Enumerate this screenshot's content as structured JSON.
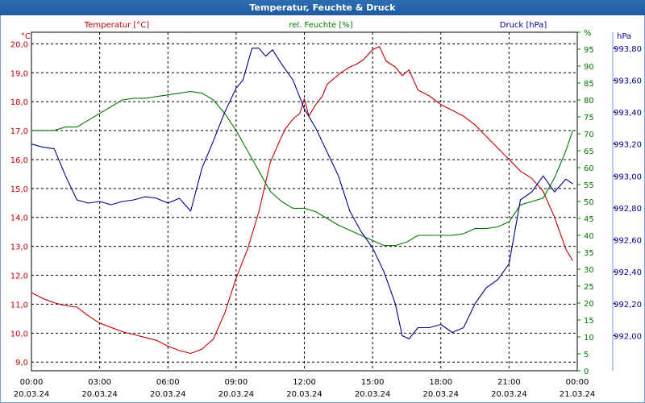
{
  "window": {
    "title": "Temperatur, Feuchte & Druck"
  },
  "colors": {
    "temperature": "#c00000",
    "humidity": "#007a00",
    "pressure": "#00008b",
    "grid": "#000000",
    "title_bar": "#2060a8"
  },
  "chart_data": {
    "type": "line",
    "title": "Temperatur, Feuchte & Druck",
    "x_ticks": [
      {
        "time": "00:00",
        "date": "20.03.24"
      },
      {
        "time": "03:00",
        "date": "20.03.24"
      },
      {
        "time": "06:00",
        "date": "20.03.24"
      },
      {
        "time": "09:00",
        "date": "20.03.24"
      },
      {
        "time": "12:00",
        "date": "20.03.24"
      },
      {
        "time": "15:00",
        "date": "20.03.24"
      },
      {
        "time": "18:00",
        "date": "20.03.24"
      },
      {
        "time": "21:00",
        "date": "20.03.24"
      },
      {
        "time": "00:00",
        "date": "21.03.24"
      }
    ],
    "xlim": [
      0,
      24
    ],
    "axes": {
      "temperature": {
        "label": "Temperatur [°C]",
        "unit": "°C",
        "ylim": [
          8.7,
          20.4
        ],
        "ticks": [
          "9,0",
          "10,0",
          "11,0",
          "12,0",
          "13,0",
          "14,0",
          "15,0",
          "16,0",
          "17,0",
          "18,0",
          "19,0",
          "20,0"
        ],
        "tick_values": [
          9,
          10,
          11,
          12,
          13,
          14,
          15,
          16,
          17,
          18,
          19,
          20
        ]
      },
      "humidity": {
        "label": "rel. Feuchte [%]",
        "unit": "%",
        "ylim": [
          0,
          100
        ],
        "ticks": [
          "0",
          "5",
          "10",
          "15",
          "20",
          "25",
          "30",
          "35",
          "40",
          "45",
          "50",
          "55",
          "60",
          "65",
          "70",
          "75",
          "80",
          "85",
          "90",
          "95",
          "%"
        ],
        "tick_values": [
          0,
          5,
          10,
          15,
          20,
          25,
          30,
          35,
          40,
          45,
          50,
          55,
          60,
          65,
          70,
          75,
          80,
          85,
          90,
          95,
          100
        ]
      },
      "pressure": {
        "label": "Druck [hPa]",
        "unit": "hPa",
        "ylim": [
          991.78,
          993.9
        ],
        "ticks": [
          "992,00",
          "992,20",
          "992,40",
          "992,60",
          "992,80",
          "993,00",
          "993,20",
          "993,40",
          "993,60",
          "993,80"
        ],
        "tick_values": [
          992.0,
          992.2,
          992.4,
          992.6,
          992.8,
          993.0,
          993.2,
          993.4,
          993.6,
          993.8
        ]
      }
    },
    "series": [
      {
        "name": "Temperatur [°C]",
        "axis": "temperature",
        "color": "#c00000",
        "x": [
          0,
          0.5,
          1,
          1.5,
          2,
          2.5,
          3,
          3.5,
          4,
          4.5,
          5,
          5.5,
          6,
          6.5,
          7,
          7.5,
          8,
          8.5,
          9,
          9.5,
          10,
          10.5,
          11,
          11.2,
          11.5,
          11.8,
          12,
          12.2,
          12.5,
          12.8,
          13,
          13.3,
          13.6,
          14,
          14.3,
          14.6,
          15,
          15.3,
          15.6,
          16,
          16.3,
          16.6,
          17,
          17.5,
          18,
          18.5,
          19,
          19.5,
          20,
          20.5,
          21,
          21.5,
          22,
          22.5,
          23,
          23.5,
          23.8
        ],
        "values": [
          11.4,
          11.2,
          11.05,
          10.95,
          10.9,
          10.6,
          10.35,
          10.2,
          10.05,
          9.95,
          9.85,
          9.75,
          9.55,
          9.4,
          9.3,
          9.45,
          9.8,
          10.7,
          11.9,
          12.9,
          14.2,
          15.9,
          16.8,
          17.1,
          17.4,
          17.6,
          18.1,
          17.5,
          17.9,
          18.2,
          18.6,
          18.8,
          19.0,
          19.2,
          19.3,
          19.45,
          19.8,
          19.9,
          19.4,
          19.2,
          18.9,
          19.1,
          18.4,
          18.2,
          17.9,
          17.7,
          17.5,
          17.2,
          16.8,
          16.4,
          16.0,
          15.6,
          15.35,
          14.9,
          14.0,
          12.9,
          12.5
        ]
      },
      {
        "name": "rel. Feuchte [%]",
        "axis": "humidity",
        "color": "#007a00",
        "x": [
          0,
          0.5,
          1,
          1.5,
          2,
          2.5,
          3,
          3.5,
          4,
          4.5,
          5,
          5.5,
          6,
          6.5,
          7,
          7.5,
          8,
          8.5,
          9,
          9.5,
          10,
          10.5,
          11,
          11.5,
          12,
          12.5,
          13,
          13.5,
          14,
          14.5,
          15,
          15.5,
          16,
          16.5,
          17,
          17.5,
          18,
          18.5,
          19,
          19.5,
          20,
          20.5,
          21,
          21.5,
          22,
          22.5,
          23,
          23.5,
          23.8
        ],
        "values": [
          71,
          71,
          71,
          72,
          72,
          74,
          76,
          78,
          80,
          80.5,
          80.5,
          81,
          81.5,
          82,
          82.5,
          82,
          80,
          76,
          71,
          65,
          59,
          53,
          50,
          48,
          48,
          47,
          45,
          43,
          41.5,
          40,
          38.5,
          37,
          37,
          38,
          40,
          40,
          40,
          40,
          40.5,
          42,
          42,
          42.5,
          44,
          49,
          50,
          51,
          57,
          65,
          71
        ]
      },
      {
        "name": "Druck [hPa]",
        "axis": "pressure",
        "color": "#00008b",
        "x": [
          0,
          0.5,
          1,
          1.5,
          2,
          2.5,
          3,
          3.5,
          4,
          4.5,
          5,
          5.5,
          6,
          6.5,
          7,
          7.5,
          8,
          8.5,
          9,
          9.3,
          9.7,
          10,
          10.3,
          10.6,
          11,
          11.5,
          12,
          12.5,
          13,
          13.5,
          14,
          14.5,
          15,
          15.5,
          16,
          16.3,
          16.6,
          17,
          17.5,
          18,
          18.5,
          19,
          19.5,
          20,
          20.5,
          21,
          21.5,
          22,
          22.5,
          23,
          23.5,
          23.8
        ],
        "values": [
          993.2,
          993.18,
          993.17,
          993.0,
          992.85,
          992.83,
          992.84,
          992.82,
          992.84,
          992.85,
          992.87,
          992.86,
          992.83,
          992.86,
          992.78,
          993.05,
          993.22,
          993.4,
          993.55,
          993.6,
          993.8,
          993.8,
          993.75,
          993.79,
          993.7,
          993.6,
          993.42,
          993.3,
          993.15,
          993.0,
          992.78,
          992.65,
          992.55,
          992.4,
          992.2,
          992.0,
          991.98,
          992.05,
          992.05,
          992.07,
          992.02,
          992.05,
          992.2,
          992.3,
          992.35,
          992.45,
          992.85,
          992.9,
          993.0,
          992.9,
          992.98,
          992.95
        ]
      }
    ]
  }
}
